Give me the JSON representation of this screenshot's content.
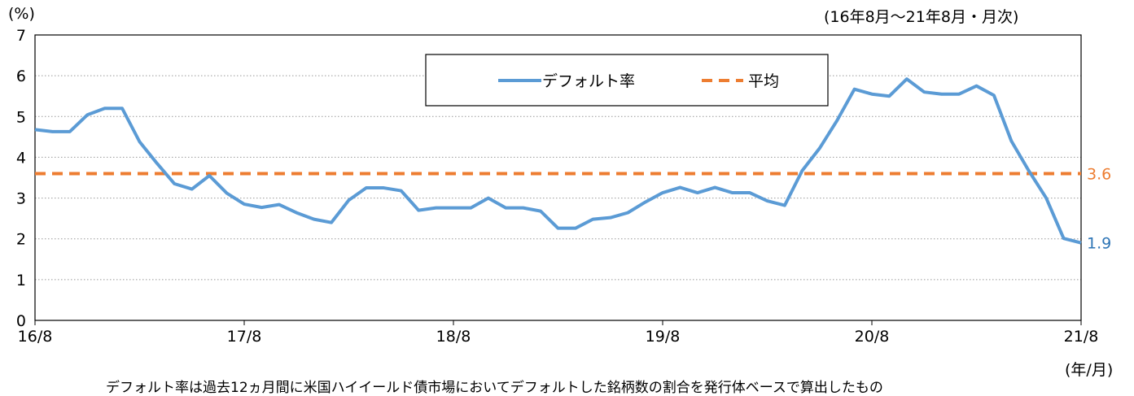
{
  "header": {
    "y_unit": "(%)",
    "period": "(16年8月～21年8月・月次)"
  },
  "x_unit": "(年/月)",
  "footnote": "デフォルト率は過去12ヵ月間に米国ハイイールド債市場においてデフォルトした銘柄数の割合を発行体ベースで算出したもの",
  "colors": {
    "default_rate": "#5B9BD5",
    "average": "#ED7D31"
  },
  "chart_data": {
    "type": "line",
    "title": "",
    "xlabel": "",
    "ylabel": "(%)",
    "ylim": [
      0,
      7
    ],
    "yticks": [
      "0",
      "1",
      "2",
      "3",
      "4",
      "5",
      "6",
      "7"
    ],
    "xticks": [
      "16/8",
      "17/8",
      "18/8",
      "19/8",
      "20/8",
      "21/8"
    ],
    "grid": true,
    "legend_position": "top-center",
    "x": [
      "16/8",
      "16/9",
      "16/10",
      "16/11",
      "16/12",
      "17/1",
      "17/2",
      "17/3",
      "17/4",
      "17/5",
      "17/6",
      "17/7",
      "17/8",
      "17/9",
      "17/10",
      "17/11",
      "17/12",
      "18/1",
      "18/2",
      "18/3",
      "18/4",
      "18/5",
      "18/6",
      "18/7",
      "18/8",
      "18/9",
      "18/10",
      "18/11",
      "18/12",
      "19/1",
      "19/2",
      "19/3",
      "19/4",
      "19/5",
      "19/6",
      "19/7",
      "19/8",
      "19/9",
      "19/10",
      "19/11",
      "19/12",
      "20/1",
      "20/2",
      "20/3",
      "20/4",
      "20/5",
      "20/6",
      "20/7",
      "20/8",
      "20/9",
      "20/10",
      "20/11",
      "20/12",
      "21/1",
      "21/2",
      "21/3",
      "21/4",
      "21/5",
      "21/6",
      "21/7",
      "21/8"
    ],
    "series": [
      {
        "name": "デフォルト率",
        "style": "solid",
        "values": [
          4.68,
          4.63,
          4.63,
          5.04,
          5.2,
          5.2,
          4.38,
          3.85,
          3.35,
          3.22,
          3.55,
          3.12,
          2.85,
          2.77,
          2.84,
          2.64,
          2.48,
          2.4,
          2.95,
          3.25,
          3.25,
          3.18,
          2.7,
          2.76,
          2.76,
          2.76,
          3.0,
          2.76,
          2.76,
          2.68,
          2.26,
          2.26,
          2.48,
          2.52,
          2.64,
          2.9,
          3.13,
          3.26,
          3.13,
          3.26,
          3.13,
          3.13,
          2.93,
          2.82,
          3.67,
          4.22,
          4.9,
          5.67,
          5.55,
          5.5,
          5.92,
          5.6,
          5.55,
          5.55,
          5.75,
          5.52,
          4.4,
          3.67,
          3.0,
          2.01,
          1.9
        ],
        "end_label": "1.9"
      },
      {
        "name": "平均",
        "style": "dashed",
        "value": 3.6,
        "end_label": "3.6"
      }
    ]
  }
}
